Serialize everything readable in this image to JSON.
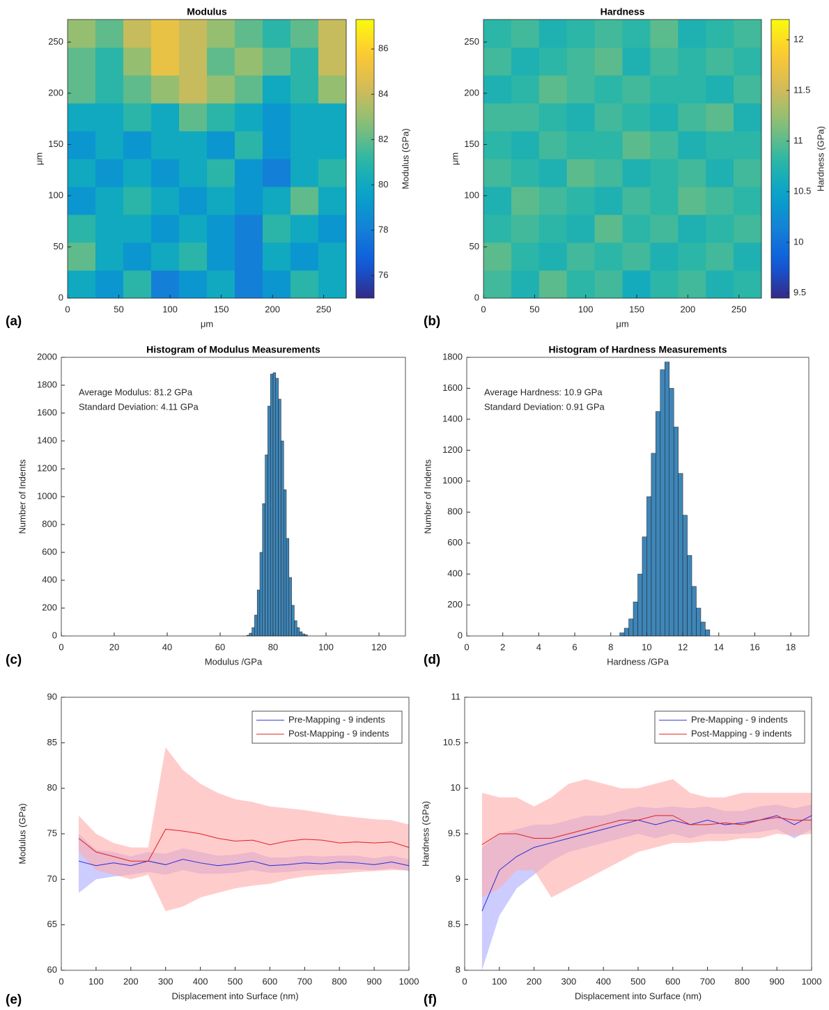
{
  "chart_data": [
    {
      "type": "heatmap",
      "label": "(a)",
      "title": "Modulus",
      "x_label": "μm",
      "y_label": "μm",
      "colorbar_label": "Modulus (GPa)",
      "colormap": "parula",
      "xlim": [
        0,
        272
      ],
      "ylim": [
        0,
        272
      ],
      "xticks": [
        0,
        50,
        100,
        150,
        200,
        250
      ],
      "yticks": [
        0,
        50,
        100,
        150,
        200,
        250
      ],
      "clim": [
        75,
        87.3
      ],
      "cticks": [
        76,
        78,
        80,
        82,
        84,
        86
      ],
      "z": [
        [
          80,
          79,
          81,
          78,
          79,
          80,
          78,
          79,
          81,
          80
        ],
        [
          82,
          80,
          79,
          80,
          81,
          79,
          78,
          80,
          79,
          80
        ],
        [
          81,
          80,
          80,
          79,
          80,
          79,
          78,
          81,
          80,
          79
        ],
        [
          79,
          80,
          81,
          80,
          79,
          80,
          79,
          80,
          82,
          80
        ],
        [
          80,
          79,
          80,
          79,
          80,
          81,
          79,
          78,
          80,
          81
        ],
        [
          79,
          80,
          79,
          80,
          80,
          79,
          81,
          79,
          80,
          80
        ],
        [
          80,
          80,
          81,
          80,
          82,
          81,
          80,
          79,
          80,
          80
        ],
        [
          82,
          81,
          82,
          83,
          84,
          83,
          82,
          80,
          81,
          83
        ],
        [
          82,
          81,
          83,
          85,
          84,
          82,
          83,
          82,
          81,
          84
        ],
        [
          83,
          82,
          84,
          85,
          84,
          83,
          82,
          81,
          82,
          84
        ]
      ]
    },
    {
      "type": "heatmap",
      "label": "(b)",
      "title": "Hardness",
      "x_label": "μm",
      "y_label": "μm",
      "colorbar_label": "Hardness (GPa)",
      "colormap": "parula",
      "xlim": [
        0,
        272
      ],
      "ylim": [
        0,
        272
      ],
      "xticks": [
        0,
        50,
        100,
        150,
        200,
        250
      ],
      "yticks": [
        0,
        50,
        100,
        150,
        200,
        250
      ],
      "clim": [
        9.45,
        12.2
      ],
      "cticks": [
        9.5,
        10,
        10.5,
        11,
        11.5,
        12
      ],
      "z": [
        [
          10.9,
          10.7,
          11,
          10.8,
          10.9,
          10.6,
          10.8,
          10.9,
          10.7,
          10.8
        ],
        [
          11,
          10.8,
          10.7,
          10.9,
          10.8,
          10.9,
          10.7,
          10.8,
          10.9,
          10.7
        ],
        [
          10.8,
          10.9,
          10.8,
          10.7,
          11,
          10.8,
          10.9,
          10.7,
          10.8,
          10.9
        ],
        [
          10.7,
          11,
          10.9,
          10.8,
          10.7,
          10.9,
          10.8,
          11,
          10.9,
          10.8
        ],
        [
          10.9,
          10.8,
          10.7,
          11,
          10.9,
          10.7,
          10.8,
          10.9,
          10.7,
          10.9
        ],
        [
          10.8,
          10.7,
          10.9,
          10.8,
          10.8,
          11,
          10.9,
          10.7,
          10.8,
          10.8
        ],
        [
          10.9,
          10.9,
          10.8,
          10.7,
          10.9,
          10.8,
          10.7,
          10.9,
          11,
          10.7
        ],
        [
          10.7,
          10.8,
          11,
          10.9,
          10.8,
          10.9,
          10.8,
          10.8,
          10.7,
          10.9
        ],
        [
          10.9,
          10.7,
          10.8,
          10.9,
          11,
          10.7,
          10.9,
          10.8,
          10.9,
          10.8
        ],
        [
          10.8,
          10.9,
          10.7,
          10.8,
          10.9,
          10.8,
          11,
          10.7,
          10.8,
          10.9
        ]
      ]
    },
    {
      "type": "histogram",
      "label": "(c)",
      "title": "Histogram of Modulus Measurements",
      "x_label": "Modulus /GPa",
      "y_label": "Number of Indents",
      "annotations": [
        "Average Modulus: 81.2 GPa",
        "Standard Deviation: 4.11 GPa"
      ],
      "color": "#3f86b8",
      "xlim": [
        0,
        130
      ],
      "ylim": [
        0,
        2000
      ],
      "xticks": [
        0,
        20,
        40,
        60,
        80,
        100,
        120
      ],
      "yticks": [
        0,
        200,
        400,
        600,
        800,
        1000,
        1200,
        1400,
        1600,
        1800,
        2000
      ],
      "bins": [
        70,
        71,
        72,
        73,
        74,
        75,
        76,
        77,
        78,
        79,
        80,
        81,
        82,
        83,
        84,
        85,
        86,
        87,
        88,
        89,
        90,
        91,
        92,
        93
      ],
      "values": [
        5,
        20,
        60,
        150,
        330,
        600,
        950,
        1300,
        1650,
        1880,
        1890,
        1850,
        1700,
        1400,
        1050,
        700,
        420,
        220,
        110,
        60,
        30,
        15,
        8
      ]
    },
    {
      "type": "histogram",
      "label": "(d)",
      "title": "Histogram of Hardness Measurements",
      "x_label": "Hardness /GPa",
      "y_label": "Number of Indents",
      "annotations": [
        "Average Hardness: 10.9 GPa",
        "Standard Deviation: 0.91 GPa"
      ],
      "color": "#3f86b8",
      "xlim": [
        0,
        19
      ],
      "ylim": [
        0,
        1800
      ],
      "xticks": [
        0,
        2,
        4,
        6,
        8,
        10,
        12,
        14,
        16,
        18
      ],
      "yticks": [
        0,
        200,
        400,
        600,
        800,
        1000,
        1200,
        1400,
        1600,
        1800
      ],
      "bins": [
        8.5,
        8.75,
        9,
        9.25,
        9.5,
        9.75,
        10,
        10.25,
        10.5,
        10.75,
        11,
        11.25,
        11.5,
        11.75,
        12,
        12.25,
        12.5,
        12.75,
        13,
        13.25,
        13.5
      ],
      "values": [
        20,
        50,
        110,
        220,
        400,
        640,
        900,
        1180,
        1450,
        1720,
        1770,
        1600,
        1350,
        1050,
        780,
        520,
        320,
        180,
        90,
        40
      ]
    },
    {
      "type": "line",
      "label": "(e)",
      "x_label": "Displacement into Surface (nm)",
      "y_label": "Modulus (GPa)",
      "legend": "upper right",
      "xlim": [
        0,
        1000
      ],
      "ylim": [
        60,
        90
      ],
      "xticks": [
        0,
        100,
        200,
        300,
        400,
        500,
        600,
        700,
        800,
        900,
        1000
      ],
      "yticks": [
        60,
        65,
        70,
        75,
        80,
        85,
        90
      ],
      "x": [
        50,
        100,
        150,
        200,
        250,
        300,
        350,
        400,
        450,
        500,
        550,
        600,
        650,
        700,
        750,
        800,
        850,
        900,
        950,
        1000
      ],
      "series": [
        {
          "name": "Pre-Mapping - 9 indents",
          "color": "#2b2bd9",
          "band_color": "#aaaaff",
          "values": [
            72,
            71.5,
            71.8,
            71.5,
            72,
            71.6,
            72.2,
            71.8,
            71.5,
            71.7,
            72,
            71.5,
            71.6,
            71.8,
            71.7,
            71.9,
            71.8,
            71.6,
            71.9,
            71.5
          ],
          "lower": [
            68.5,
            70,
            70.3,
            70.5,
            70.8,
            70.5,
            71,
            70.6,
            70.6,
            70.7,
            71,
            70.7,
            70.8,
            71,
            71,
            71.1,
            71.1,
            71,
            71.2,
            70.9
          ],
          "upper": [
            75,
            73.2,
            73,
            72.5,
            73,
            72.8,
            73.4,
            73,
            72.6,
            72.7,
            73,
            72.4,
            72.4,
            72.6,
            72.5,
            72.6,
            72.6,
            72.3,
            72.6,
            72.2
          ]
        },
        {
          "name": "Post-Mapping - 9 indents",
          "color": "#e0201f",
          "band_color": "#ffaaaa",
          "values": [
            74.5,
            73,
            72.5,
            72,
            72,
            75.5,
            75.3,
            75,
            74.5,
            74.2,
            74.3,
            73.8,
            74.2,
            74.4,
            74.3,
            74,
            74.1,
            74,
            74.1,
            73.5
          ],
          "lower": [
            73,
            71,
            70.5,
            70,
            70.5,
            66.5,
            67,
            68,
            68.5,
            69,
            69.3,
            69.5,
            70,
            70.3,
            70.5,
            70.6,
            70.8,
            70.9,
            71,
            71
          ],
          "upper": [
            77,
            75,
            74,
            73.5,
            73.5,
            84.5,
            82,
            80.5,
            79.5,
            78.8,
            78.5,
            78,
            77.8,
            77.6,
            77.3,
            77,
            76.8,
            76.6,
            76.5,
            76
          ]
        }
      ]
    },
    {
      "type": "line",
      "label": "(f)",
      "x_label": "Displacement into Surface (nm)",
      "y_label": "Hardness (GPa)",
      "legend": "upper right",
      "xlim": [
        0,
        1000
      ],
      "ylim": [
        8,
        11
      ],
      "xticks": [
        0,
        100,
        200,
        300,
        400,
        500,
        600,
        700,
        800,
        900,
        1000
      ],
      "yticks": [
        8,
        8.5,
        9,
        9.5,
        10,
        10.5,
        11
      ],
      "x": [
        50,
        100,
        150,
        200,
        250,
        300,
        350,
        400,
        450,
        500,
        550,
        600,
        650,
        700,
        750,
        800,
        850,
        900,
        950,
        1000
      ],
      "series": [
        {
          "name": "Pre-Mapping - 9 indents",
          "color": "#2b2bd9",
          "band_color": "#aaaaff",
          "values": [
            8.65,
            9.1,
            9.25,
            9.35,
            9.4,
            9.45,
            9.5,
            9.55,
            9.6,
            9.65,
            9.6,
            9.65,
            9.6,
            9.65,
            9.6,
            9.62,
            9.65,
            9.7,
            9.6,
            9.7
          ],
          "lower": [
            8,
            8.6,
            8.9,
            9.05,
            9.2,
            9.3,
            9.35,
            9.4,
            9.45,
            9.5,
            9.45,
            9.5,
            9.45,
            9.5,
            9.5,
            9.5,
            9.52,
            9.55,
            9.45,
            9.55
          ],
          "upper": [
            9.35,
            9.5,
            9.55,
            9.6,
            9.6,
            9.65,
            9.7,
            9.7,
            9.75,
            9.8,
            9.78,
            9.8,
            9.78,
            9.8,
            9.75,
            9.75,
            9.8,
            9.82,
            9.78,
            9.82
          ]
        },
        {
          "name": "Post-Mapping - 9 indents",
          "color": "#e0201f",
          "band_color": "#ffaaaa",
          "values": [
            9.38,
            9.5,
            9.5,
            9.45,
            9.45,
            9.5,
            9.55,
            9.6,
            9.65,
            9.65,
            9.7,
            9.7,
            9.6,
            9.6,
            9.62,
            9.6,
            9.65,
            9.68,
            9.65,
            9.65
          ],
          "lower": [
            8.8,
            8.9,
            9.1,
            9.1,
            8.8,
            8.9,
            9,
            9.1,
            9.2,
            9.3,
            9.35,
            9.4,
            9.4,
            9.42,
            9.42,
            9.45,
            9.45,
            9.5,
            9.48,
            9.5
          ],
          "upper": [
            9.95,
            9.9,
            9.9,
            9.8,
            9.9,
            10.05,
            10.1,
            10.05,
            10,
            10,
            10.05,
            10.1,
            9.95,
            9.9,
            9.9,
            9.95,
            9.95,
            9.95,
            9.95,
            9.95
          ]
        }
      ]
    }
  ]
}
